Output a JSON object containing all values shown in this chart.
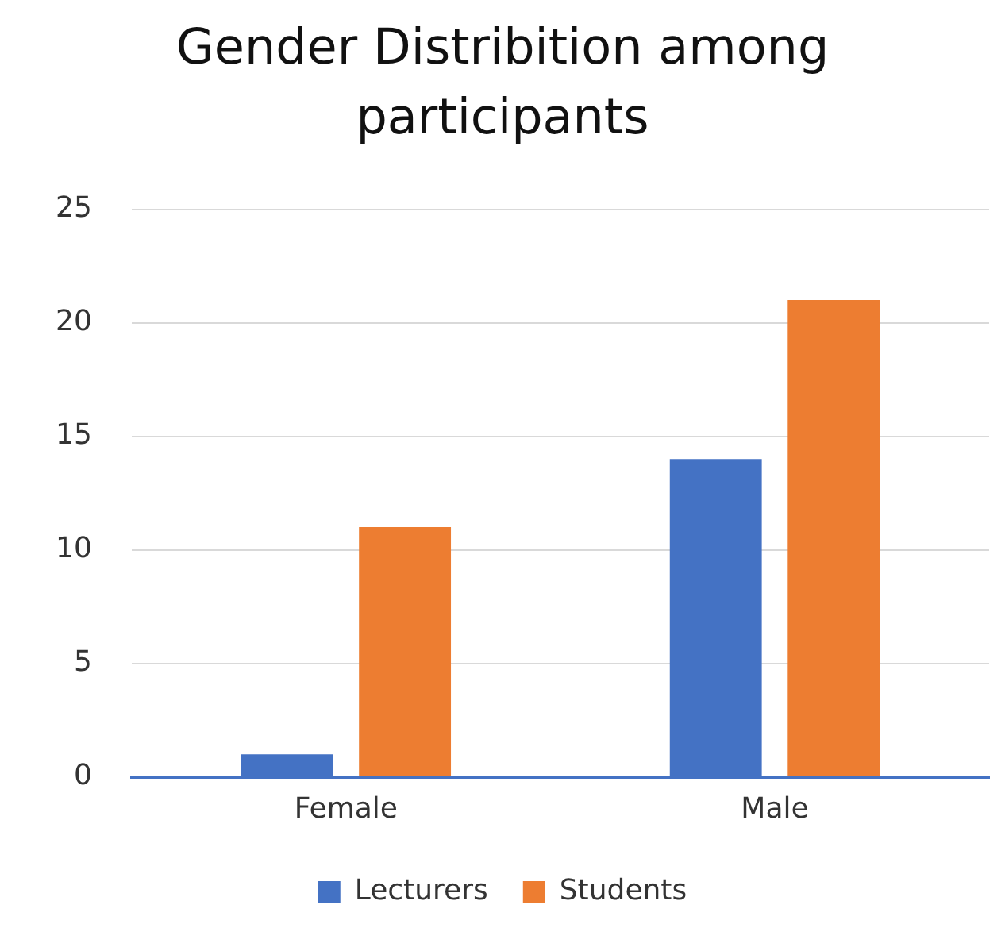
{
  "chart_data": {
    "type": "bar",
    "title": "Gender Distribition among participants",
    "categories": [
      "Female",
      "Male"
    ],
    "series": [
      {
        "name": "Lecturers",
        "color": "#4472c4",
        "values": [
          1,
          14
        ]
      },
      {
        "name": "Students",
        "color": "#ed7d31",
        "values": [
          11,
          21
        ]
      }
    ],
    "ylim": [
      0,
      25
    ],
    "yticks": [
      0,
      5,
      10,
      15,
      20,
      25
    ],
    "grid": "y",
    "legend": "bottom"
  }
}
